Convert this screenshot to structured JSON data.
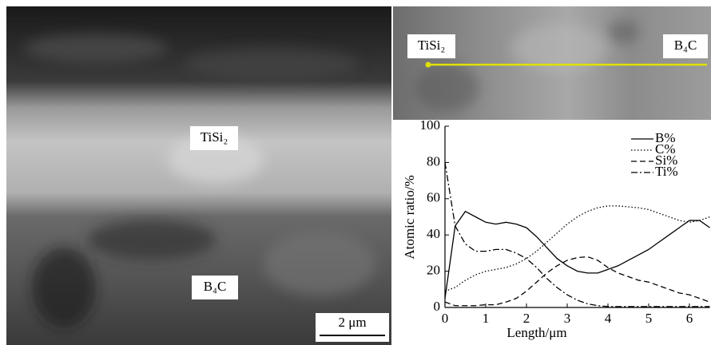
{
  "images": {
    "left": {
      "labels": [
        "TiSi₂",
        "B₄C"
      ],
      "scale_bar": "2 μm"
    },
    "top_right": {
      "labels": [
        "TiSi₂",
        "B₄C"
      ]
    }
  },
  "chart_data": {
    "type": "line",
    "x_label": "Length/μm",
    "y_label": "Atomic ratio/%",
    "x": [
      0,
      0.25,
      0.5,
      0.75,
      1,
      1.25,
      1.5,
      1.75,
      2,
      2.25,
      2.5,
      2.75,
      3,
      3.25,
      3.5,
      3.75,
      4,
      4.25,
      4.5,
      4.75,
      5,
      5.25,
      5.5,
      5.75,
      6,
      6.25,
      6.5
    ],
    "series": [
      {
        "name": "B%",
        "color": "#000000",
        "dash": "solid",
        "values": [
          5,
          45,
          53,
          50,
          47,
          46,
          47,
          46,
          44,
          39,
          33,
          27,
          23,
          20,
          19,
          19,
          21,
          23,
          26,
          29,
          32,
          36,
          40,
          44,
          48,
          48,
          44
        ]
      },
      {
        "name": "C%",
        "color": "#000000",
        "dash": "dotted",
        "values": [
          9,
          11,
          15,
          18,
          20,
          21,
          22,
          24,
          27,
          31,
          36,
          41,
          46,
          50,
          53,
          55,
          56,
          56,
          55.5,
          55,
          54,
          52,
          50,
          48,
          47,
          48,
          50
        ]
      },
      {
        "name": "Si%",
        "color": "#000000",
        "dash": "dashed",
        "values": [
          3,
          1,
          1,
          1,
          1.5,
          1.5,
          3,
          5,
          9,
          14,
          19,
          23,
          26,
          27.5,
          28,
          26,
          22,
          19,
          17,
          15,
          14,
          12,
          10,
          8,
          7,
          5,
          3
        ]
      },
      {
        "name": "Ti%",
        "color": "#000000",
        "dash": "dashdot",
        "values": [
          80,
          45,
          35,
          31,
          31,
          32,
          32,
          30,
          27,
          22,
          16,
          11,
          7,
          4,
          2,
          1,
          0.5,
          0.5,
          0.5,
          0.5,
          0.5,
          0.5,
          0.5,
          0.5,
          0.5,
          0.5,
          0.5
        ]
      }
    ],
    "xlim": [
      0,
      6.5
    ],
    "ylim": [
      0,
      100
    ],
    "xticks": [
      0,
      1,
      2,
      3,
      4,
      5,
      6
    ],
    "yticks": [
      0,
      20,
      40,
      60,
      80,
      100
    ]
  }
}
